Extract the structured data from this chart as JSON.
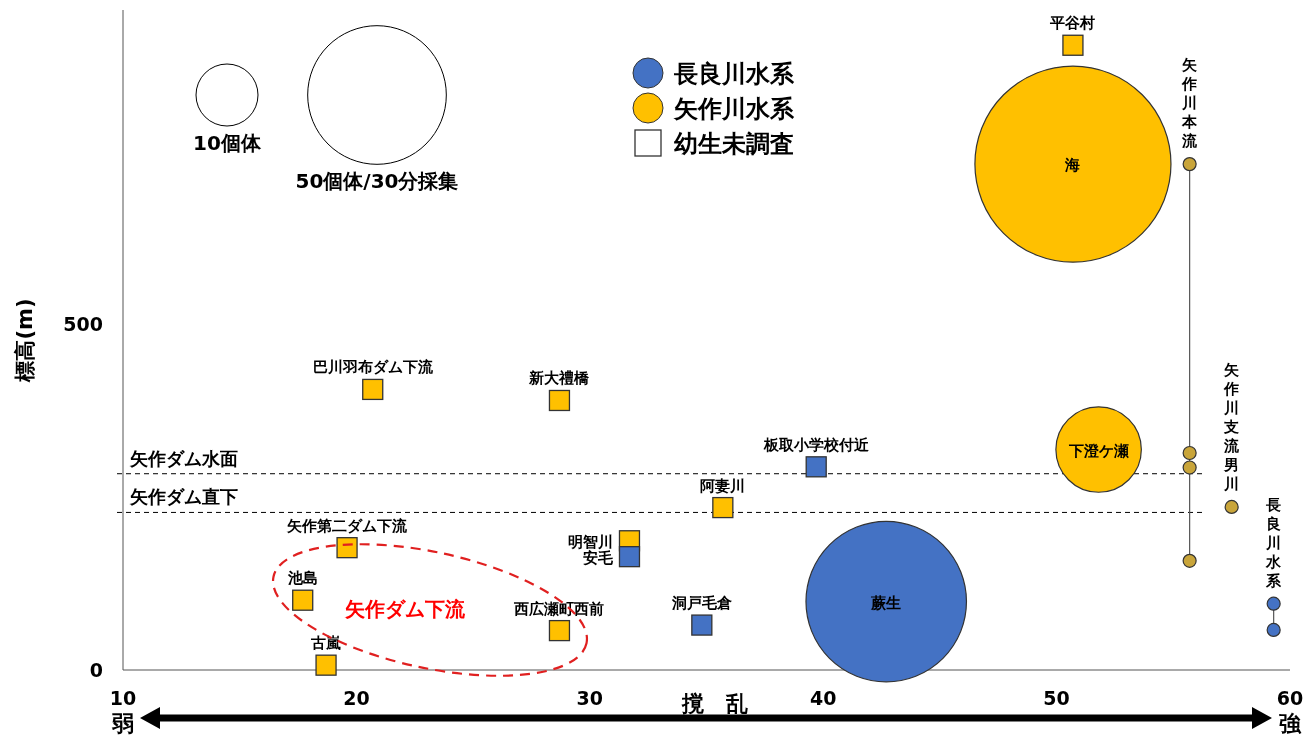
{
  "chart_data": {
    "type": "bubble",
    "ylabel": "標高(m)",
    "xlabel": "撹　乱",
    "xlim": [
      10,
      60
    ],
    "xticks": [
      {
        "value": 10,
        "label": "10\n弱"
      },
      20,
      30,
      40,
      50,
      {
        "value": 60,
        "label": "60\n強"
      }
    ],
    "ylim": [
      0,
      955
    ],
    "yticks": [
      0,
      500
    ],
    "grid": false,
    "legend": "top",
    "size_legend": [
      {
        "value": 10,
        "label": "10個体"
      },
      {
        "value": 50,
        "label": "50個体/30分採集"
      }
    ],
    "series": [
      {
        "name": "長良川水系",
        "color": "#4472c4",
        "x": [
          42.7
        ],
        "values": [
          99
        ],
        "sizes": [
          67
        ]
      },
      {
        "name": "矢作川水系",
        "color": "#ffc000",
        "x": [
          50.7,
          51.8
        ],
        "values": [
          732,
          319
        ],
        "sizes": [
          100,
          19
        ]
      },
      {
        "type": "scatter",
        "marker": "square",
        "x": [
          50.7,
          20.7,
          28.7,
          39.7,
          35.7,
          31.7,
          31.7,
          34.8,
          28.7,
          19.6,
          17.7,
          18.7
        ],
        "values": [
          904,
          406,
          390,
          294,
          235,
          187,
          164,
          65,
          57,
          177,
          101,
          7
        ],
        "colors": [
          "#ffc000",
          "#ffc000",
          "#ffc000",
          "#4472c4",
          "#ffc000",
          "#ffc000",
          "#4472c4",
          "#4472c4",
          "#ffc000",
          "#ffc000",
          "#ffc000",
          "#ffc000"
        ]
      },
      {
        "type": "line",
        "marker": "circle",
        "color": "#c9a53a",
        "x": [
          55.7,
          55.7,
          55.7,
          55.7
        ],
        "values": [
          732,
          314,
          293,
          158
        ]
      },
      {
        "type": "scatter",
        "marker": "circle",
        "color": "#c9a53a",
        "x": [
          57.5
        ],
        "values": [
          236
        ]
      },
      {
        "type": "line",
        "marker": "circle",
        "color": "#4472c4",
        "x": [
          59.3,
          59.3
        ],
        "values": [
          96,
          58
        ]
      }
    ],
    "ref_lines": [
      {
        "axis": "y",
        "value": 284,
        "label": "矢作ダム水面",
        "line_style": "dashed",
        "color": "#000000"
      },
      {
        "axis": "y",
        "value": 228,
        "label": "矢作ダム直下",
        "line_style": "dashed",
        "color": "#000000"
      }
    ],
    "annotations": [
      {
        "text": "平谷村",
        "x": 50.7,
        "y": 904
      },
      {
        "text": "海",
        "x": 50.7,
        "y": 732
      },
      {
        "text": "下澄ケ瀬",
        "x": 51.8,
        "y": 319
      },
      {
        "text": "蕨生",
        "x": 42.7,
        "y": 99
      },
      {
        "text": "巴川羽布ダム下流",
        "x": 20.7,
        "y": 406
      },
      {
        "text": "新大禮橋",
        "x": 28.7,
        "y": 390
      },
      {
        "text": "板取小学校付近",
        "x": 39.7,
        "y": 294
      },
      {
        "text": "阿妻川",
        "x": 35.7,
        "y": 235
      },
      {
        "text": "明智川",
        "x": 31.7,
        "y": 187
      },
      {
        "text": "安毛",
        "x": 31.7,
        "y": 164
      },
      {
        "text": "洞戸毛倉",
        "x": 34.8,
        "y": 65
      },
      {
        "text": "西広瀬町西前",
        "x": 28.7,
        "y": 57
      },
      {
        "text": "矢作第二ダム下流",
        "x": 19.6,
        "y": 177
      },
      {
        "text": "池島",
        "x": 17.7,
        "y": 101
      },
      {
        "text": "古嵐",
        "x": 18.7,
        "y": 7
      },
      {
        "text": "矢作川本流",
        "x": 55.7,
        "y": 732
      },
      {
        "text": "矢作川支流男川",
        "x": 57.5,
        "y": 236
      },
      {
        "text": "長良川水系",
        "x": 59.3,
        "y": 96
      },
      "矢作ダム下流",
      "幼生未調査"
    ]
  }
}
